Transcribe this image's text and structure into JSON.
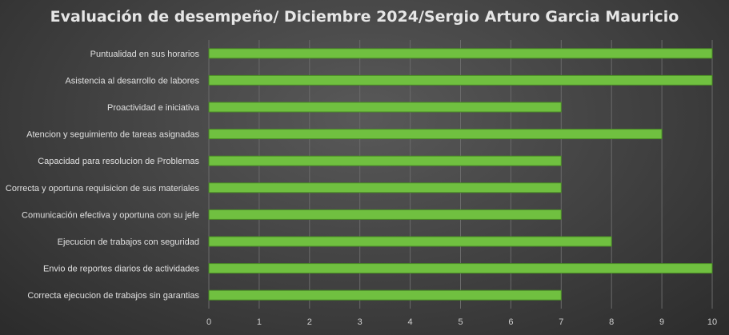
{
  "chart_data": {
    "type": "bar",
    "orientation": "horizontal",
    "title": "Evaluación de desempeño/ Diciembre 2024/Sergio Arturo Garcia Mauricio",
    "xlabel": "",
    "ylabel": "",
    "categories": [
      "Puntualidad en sus horarios",
      "Asistencia al desarrollo de labores",
      "Proactividad e iniciativa",
      "Atencion y seguimiento de tareas asignadas",
      "Capacidad para resolucion de Problemas",
      "Correcta y oportuna requisicion de sus materiales",
      "Comunicación  efectiva y oportuna con su jefe",
      "Ejecucion de trabajos con seguridad",
      "Envio de reportes diarios de actividades",
      "Correcta ejecucion de trabajos sin garantias"
    ],
    "values": [
      10,
      10,
      7,
      9,
      7,
      7,
      7,
      8,
      10,
      7
    ],
    "xlim": [
      0,
      10
    ],
    "xticks": [
      "0",
      "1",
      "2",
      "3",
      "4",
      "5",
      "6",
      "7",
      "8",
      "9",
      "10"
    ],
    "grid": true,
    "legend": "none",
    "colors": {
      "bar": "#70c040",
      "bar_edge": "#4a8a26",
      "grid": "#6a6a6a",
      "text": "#e0e0e0"
    }
  }
}
